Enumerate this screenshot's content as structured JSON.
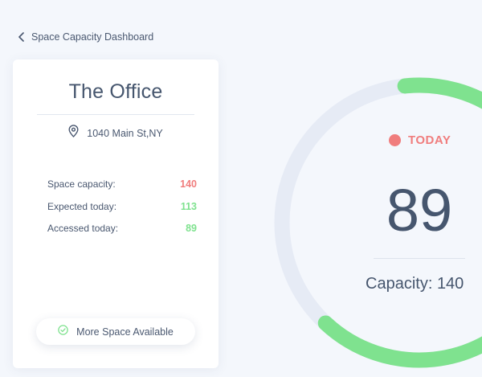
{
  "header": {
    "back_label": "Space Capacity Dashboard"
  },
  "office": {
    "name": "The Office",
    "address": "1040 Main St,NY"
  },
  "stats": [
    {
      "label": "Space capacity:",
      "value": "140",
      "color": "#f07d7d"
    },
    {
      "label": "Expected today:",
      "value": "113",
      "color": "#7fe28f"
    },
    {
      "label": "Accessed today:",
      "value": "89",
      "color": "#7fe28f"
    }
  ],
  "status": {
    "label": "More Space Available",
    "icon": "check-circle-icon"
  },
  "gauge": {
    "badge_label": "TODAY",
    "value": "89",
    "capacity_label": "Capacity:",
    "capacity_value": "140",
    "fill_fraction": 0.636,
    "track_color": "#e6ebf5",
    "fill_color": "#7fe28f",
    "badge_color": "#f07d7d"
  }
}
